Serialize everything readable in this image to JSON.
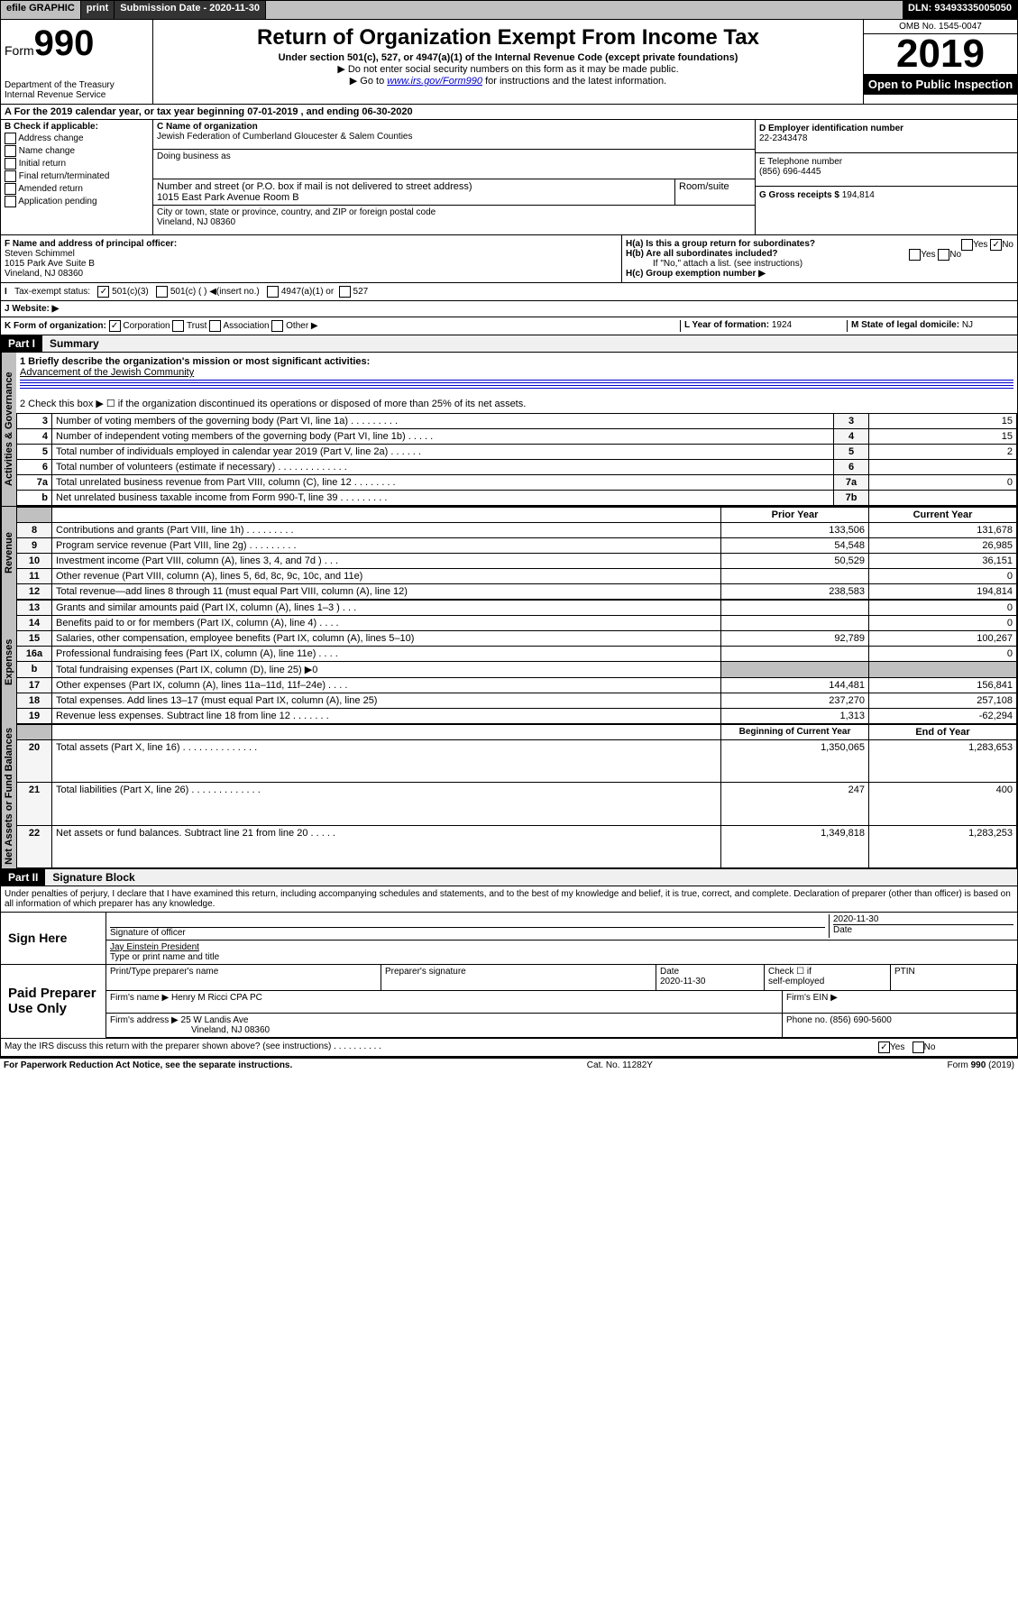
{
  "topbar": {
    "efile": "efile GRAPHIC",
    "print": "print",
    "submission_label": "Submission Date - ",
    "submission_date": "2020-11-30",
    "dln_label": "DLN: ",
    "dln": "93493335005050"
  },
  "header": {
    "form_label": "Form",
    "form_number": "990",
    "dept": "Department of the Treasury",
    "irs": "Internal Revenue Service",
    "title": "Return of Organization Exempt From Income Tax",
    "subtitle": "Under section 501(c), 527, or 4947(a)(1) of the Internal Revenue Code (except private foundations)",
    "note1": "▶ Do not enter social security numbers on this form as it may be made public.",
    "note2_pre": "▶ Go to ",
    "note2_link": "www.irs.gov/Form990",
    "note2_post": " for instructions and the latest information.",
    "omb": "OMB No. 1545-0047",
    "year": "2019",
    "open_public": "Open to Public Inspection"
  },
  "rowA": {
    "text": "A For the 2019 calendar year, or tax year beginning 07-01-2019   , and ending 06-30-2020"
  },
  "sectionB": {
    "label": "B Check if applicable:",
    "items": [
      "Address change",
      "Name change",
      "Initial return",
      "Final return/terminated",
      "Amended return",
      "Application pending"
    ]
  },
  "sectionC": {
    "name_label": "C Name of organization",
    "name": "Jewish Federation of Cumberland Gloucester & Salem Counties",
    "dba_label": "Doing business as",
    "addr_label": "Number and street (or P.O. box if mail is not delivered to street address)",
    "room_label": "Room/suite",
    "addr": "1015 East Park Avenue Room B",
    "city_label": "City or town, state or province, country, and ZIP or foreign postal code",
    "city": "Vineland, NJ  08360"
  },
  "sectionD": {
    "ein_label": "D Employer identification number",
    "ein": "22-2343478",
    "phone_label": "E Telephone number",
    "phone": "(856) 696-4445",
    "gross_label": "G Gross receipts $ ",
    "gross": "194,814"
  },
  "sectionF": {
    "label": "F  Name and address of principal officer:",
    "name": "Steven Schimmel",
    "addr1": "1015 Park Ave Suite B",
    "addr2": "Vineland, NJ  08360"
  },
  "sectionH": {
    "ha": "H(a)  Is this a group return for subordinates?",
    "hb": "H(b)  Are all subordinates included?",
    "hb_note": "If \"No,\" attach a list. (see instructions)",
    "hc": "H(c)  Group exemption number ▶",
    "yes": "Yes",
    "no": "No",
    "ha_ans": "No"
  },
  "rowI": {
    "label": "Tax-exempt status:",
    "opt1": "501(c)(3)",
    "opt2": "501(c) (  ) ◀(insert no.)",
    "opt3": "4947(a)(1) or",
    "opt4": "527"
  },
  "rowJ": {
    "label": "J   Website: ▶"
  },
  "rowK": {
    "label": "K Form of organization:",
    "opts": [
      "Corporation",
      "Trust",
      "Association",
      "Other ▶"
    ],
    "L_label": "L Year of formation: ",
    "L_val": "1924",
    "M_label": "M State of legal domicile: ",
    "M_val": "NJ"
  },
  "part1": {
    "header": "Part I",
    "title": "Summary",
    "q1": "1  Briefly describe the organization's mission or most significant activities:",
    "q1_ans": "Advancement of the Jewish Community",
    "q2": "2   Check this box ▶ ☐  if the organization discontinued its operations or disposed of more than 25% of its net assets.",
    "rows_top": [
      {
        "n": "3",
        "desc": "Number of voting members of the governing body (Part VI, line 1a)   .    .    .    .    .    .    .    .    .",
        "box": "3",
        "val": "15"
      },
      {
        "n": "4",
        "desc": "Number of independent voting members of the governing body (Part VI, line 1b)   .    .    .    .    .",
        "box": "4",
        "val": "15"
      },
      {
        "n": "5",
        "desc": "Total number of individuals employed in calendar year 2019 (Part V, line 2a)   .    .    .    .    .    .",
        "box": "5",
        "val": "2"
      },
      {
        "n": "6",
        "desc": "Total number of volunteers (estimate if necessary)   .    .    .    .    .    .    .    .    .    .    .    .    .",
        "box": "6",
        "val": ""
      },
      {
        "n": "7a",
        "desc": "Total unrelated business revenue from Part VIII, column (C), line 12   .    .    .    .    .    .    .    .",
        "box": "7a",
        "val": "0"
      },
      {
        "n": " b",
        "desc": "Net unrelated business taxable income from Form 990-T, line 39   .    .    .    .    .    .    .    .    .",
        "box": "7b",
        "val": ""
      }
    ],
    "col_headers": {
      "prior": "Prior Year",
      "current": "Current Year",
      "begin": "Beginning of Current Year",
      "end": "End of Year"
    },
    "revenue_label": "Revenue",
    "expenses_label": "Expenses",
    "netassets_label": "Net Assets or Fund Balances",
    "gov_label": "Activities & Governance",
    "revenue": [
      {
        "n": "8",
        "desc": "Contributions and grants (Part VIII, line 1h)   .    .    .    .    .    .    .    .    .",
        "prior": "133,506",
        "curr": "131,678"
      },
      {
        "n": "9",
        "desc": "Program service revenue (Part VIII, line 2g)   .    .    .    .    .    .    .    .    .",
        "prior": "54,548",
        "curr": "26,985"
      },
      {
        "n": "10",
        "desc": "Investment income (Part VIII, column (A), lines 3, 4, and 7d )   .    .    .",
        "prior": "50,529",
        "curr": "36,151"
      },
      {
        "n": "11",
        "desc": "Other revenue (Part VIII, column (A), lines 5, 6d, 8c, 9c, 10c, and 11e)",
        "prior": "",
        "curr": "0"
      },
      {
        "n": "12",
        "desc": "Total revenue—add lines 8 through 11 (must equal Part VIII, column (A), line 12)",
        "prior": "238,583",
        "curr": "194,814"
      }
    ],
    "expenses": [
      {
        "n": "13",
        "desc": "Grants and similar amounts paid (Part IX, column (A), lines 1–3 )   .    .    .",
        "prior": "",
        "curr": "0"
      },
      {
        "n": "14",
        "desc": "Benefits paid to or for members (Part IX, column (A), line 4)   .    .    .    .",
        "prior": "",
        "curr": "0"
      },
      {
        "n": "15",
        "desc": "Salaries, other compensation, employee benefits (Part IX, column (A), lines 5–10)",
        "prior": "92,789",
        "curr": "100,267"
      },
      {
        "n": "16a",
        "desc": "Professional fundraising fees (Part IX, column (A), line 11e)   .    .    .    .",
        "prior": "",
        "curr": "0"
      },
      {
        "n": "  b",
        "desc": "Total fundraising expenses (Part IX, column (D), line 25) ▶0",
        "prior": "—",
        "curr": "—"
      },
      {
        "n": "17",
        "desc": "Other expenses (Part IX, column (A), lines 11a–11d, 11f–24e)   .    .    .    .",
        "prior": "144,481",
        "curr": "156,841"
      },
      {
        "n": "18",
        "desc": "Total expenses. Add lines 13–17 (must equal Part IX, column (A), line 25)",
        "prior": "237,270",
        "curr": "257,108"
      },
      {
        "n": "19",
        "desc": "Revenue less expenses. Subtract line 18 from line 12   .    .    .    .    .    .    .",
        "prior": "1,313",
        "curr": "-62,294"
      }
    ],
    "netassets": [
      {
        "n": "20",
        "desc": "Total assets (Part X, line 16)   .    .    .    .    .    .    .    .    .    .    .    .    .    .",
        "prior": "1,350,065",
        "curr": "1,283,653"
      },
      {
        "n": "21",
        "desc": "Total liabilities (Part X, line 26)   .    .    .    .    .    .    .    .    .    .    .    .    .",
        "prior": "247",
        "curr": "400"
      },
      {
        "n": "22",
        "desc": "Net assets or fund balances. Subtract line 21 from line 20   .    .    .    .    .",
        "prior": "1,349,818",
        "curr": "1,283,253"
      }
    ]
  },
  "part2": {
    "header": "Part II",
    "title": "Signature Block",
    "penalty": "Under penalties of perjury, I declare that I have examined this return, including accompanying schedules and statements, and to the best of my knowledge and belief, it is true, correct, and complete. Declaration of preparer (other than officer) is based on all information of which preparer has any knowledge."
  },
  "sign": {
    "label": "Sign Here",
    "sig_label": "Signature of officer",
    "date": "2020-11-30",
    "date_label": "Date",
    "name": "Jay Einstein  President",
    "name_label": "Type or print name and title"
  },
  "paid": {
    "label": "Paid Preparer Use Only",
    "h1": "Print/Type preparer's name",
    "h2": "Preparer's signature",
    "h3": "Date",
    "date": "2020-11-30",
    "h4_a": "Check ☐ if",
    "h4_b": "self-employed",
    "h5": "PTIN",
    "firm_name_label": "Firm's name    ▶ ",
    "firm_name": "Henry M Ricci CPA PC",
    "firm_ein_label": "Firm's EIN ▶",
    "firm_addr_label": "Firm's address ▶ ",
    "firm_addr1": "25 W Landis Ave",
    "firm_addr2": "Vineland, NJ  08360",
    "phone_label": "Phone no. ",
    "phone": "(856) 690-5600"
  },
  "discuss": {
    "text": "May the IRS discuss this return with the preparer shown above? (see instructions)    .    .    .    .    .    .    .    .    .    .",
    "yes": "Yes",
    "no": "No"
  },
  "footer": {
    "left": "For Paperwork Reduction Act Notice, see the separate instructions.",
    "mid": "Cat. No. 11282Y",
    "right": "Form 990 (2019)"
  }
}
